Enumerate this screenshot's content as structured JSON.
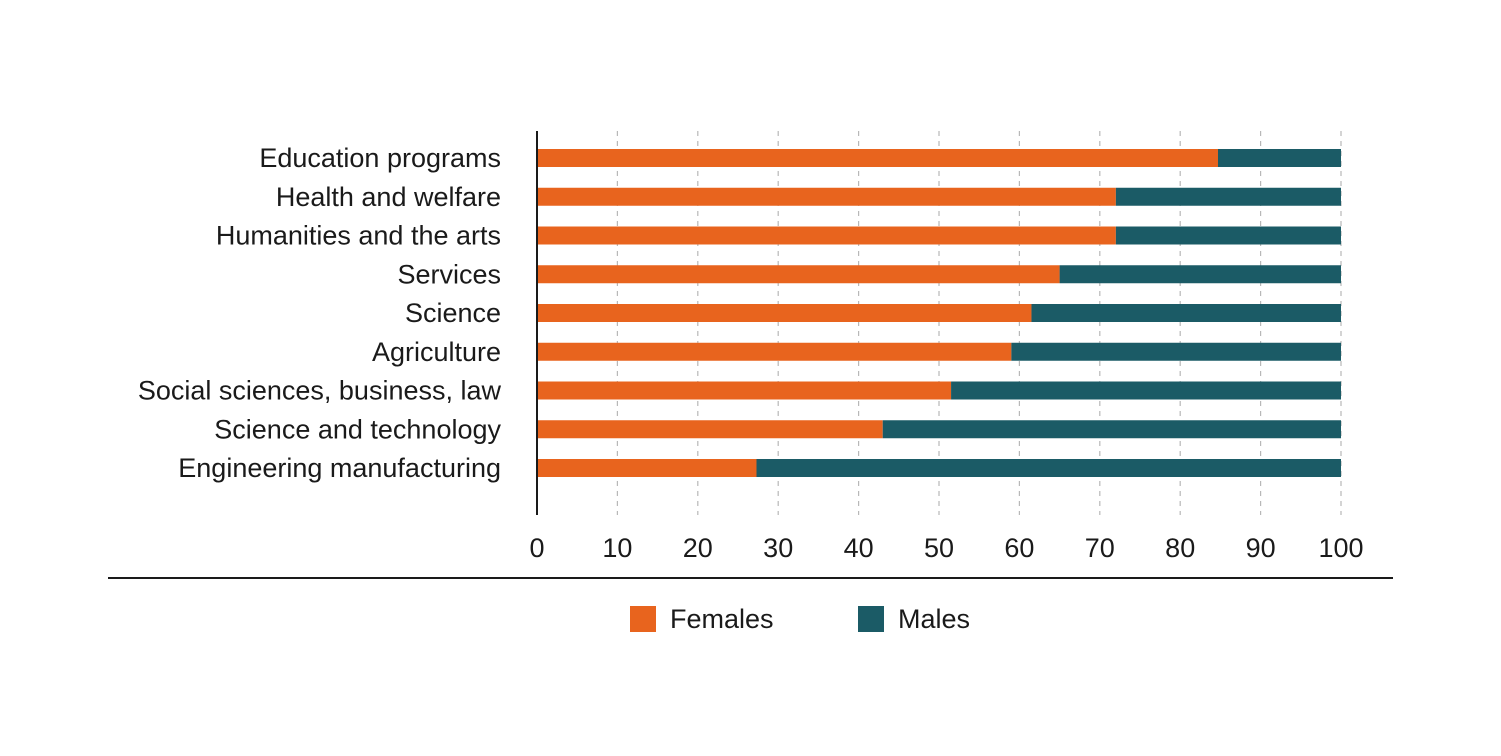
{
  "colors": {
    "females": "#e8641e",
    "males": "#1b5b66",
    "axis": "#1a1a1a",
    "grid": "#b8b8b8",
    "text": "#1a1a1a"
  },
  "chart_data": {
    "type": "bar",
    "orientation": "horizontal",
    "stacked": true,
    "categories": [
      "Education programs",
      "Health and welfare",
      "Humanities and the arts",
      "Services",
      "Science",
      "Agriculture",
      "Social sciences, business, law",
      "Science and technology",
      "Engineering manufacturing"
    ],
    "series": [
      {
        "name": "Females",
        "values": [
          84.7,
          72,
          72,
          65,
          61.5,
          59,
          51.5,
          43,
          27.3
        ]
      },
      {
        "name": "Males",
        "values": [
          15.3,
          28,
          28,
          35,
          38.5,
          41,
          48.5,
          57,
          72.7
        ]
      }
    ],
    "title": "",
    "xlabel": "",
    "ylabel": "",
    "xlim": [
      0,
      100
    ],
    "xticks": [
      0,
      10,
      20,
      30,
      40,
      50,
      60,
      70,
      80,
      90,
      100
    ],
    "grid": "vertical-dashed",
    "legend_position": "bottom-center"
  }
}
